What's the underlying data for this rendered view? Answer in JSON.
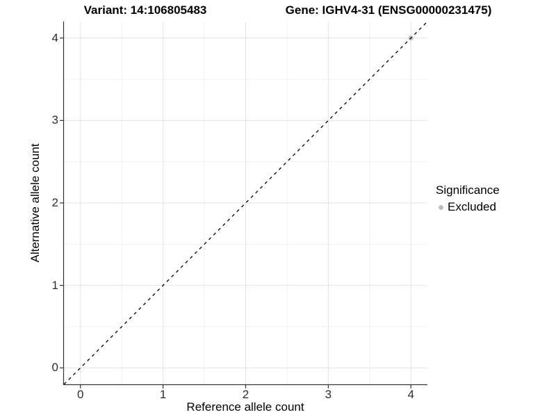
{
  "chart_data": {
    "type": "scatter",
    "title_left": "Variant: 14:106805483",
    "title_right": "Gene: IGHV4-31 (ENSG00000231475)",
    "xlabel": "Reference allele count",
    "ylabel": "Alternative allele count",
    "xlim": [
      -0.2,
      4.2
    ],
    "ylim": [
      -0.2,
      4.2
    ],
    "xticks": [
      0,
      1,
      2,
      3,
      4
    ],
    "yticks": [
      0,
      1,
      2,
      3,
      4
    ],
    "minor_gridlines": [
      0.5,
      1.5,
      2.5,
      3.5
    ],
    "grid": "major and minor, on white panel",
    "reference_line": {
      "kind": "identity y=x",
      "from": [
        -0.2,
        -0.2
      ],
      "to": [
        4.2,
        4.2
      ],
      "style": "dashed",
      "color": "#000000"
    },
    "series": [
      {
        "name": "Excluded",
        "marker": "circle",
        "color": "#bdbdbd",
        "points": [
          [
            4,
            4
          ]
        ]
      }
    ],
    "legend": {
      "title": "Significance",
      "position": "right",
      "entries": [
        {
          "label": "Excluded",
          "color": "#bdbdbd"
        }
      ]
    },
    "colors": {
      "grid_major": "#e2e2e2",
      "grid_minor": "#f1f1f1",
      "axis_line": "#333333",
      "tick_text": "#2b2b2b",
      "title_text": "#000000"
    }
  }
}
